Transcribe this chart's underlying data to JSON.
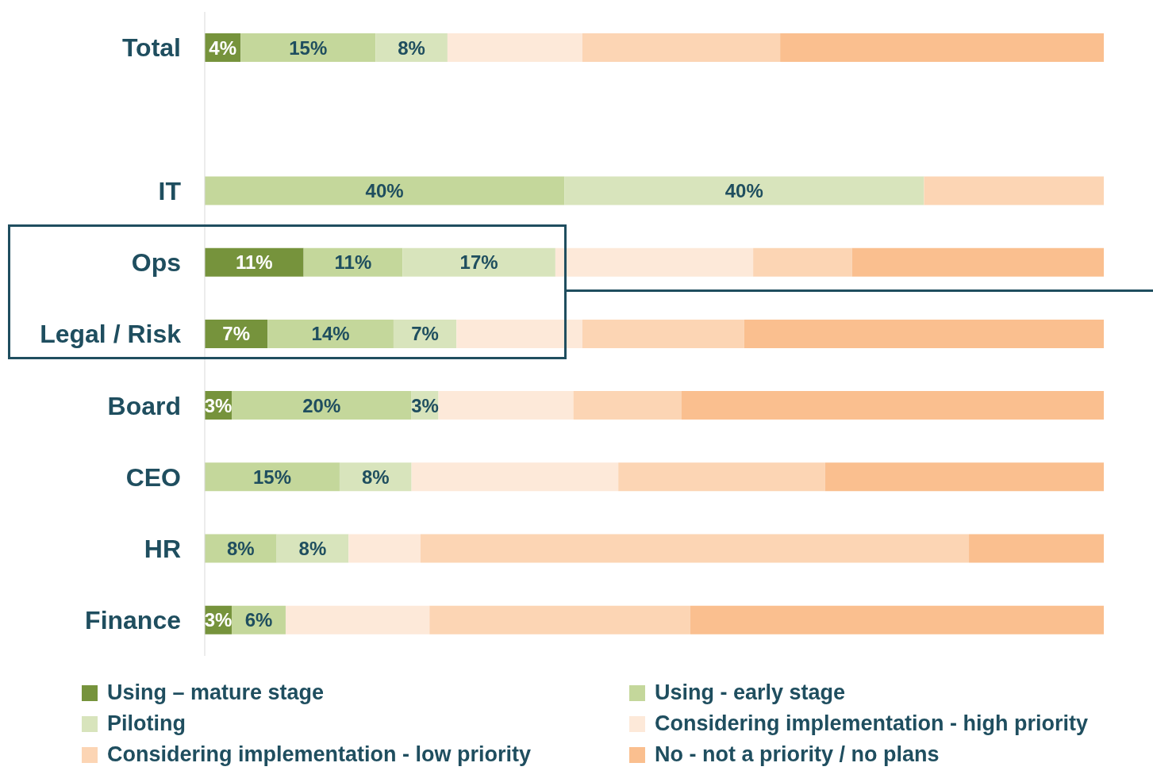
{
  "chart_data": {
    "type": "bar",
    "orientation": "horizontal",
    "stacked": true,
    "categories": [
      "Total",
      null,
      "IT",
      "Ops",
      "Legal / Risk",
      "Board",
      "CEO",
      "HR",
      "Finance"
    ],
    "series": [
      {
        "name": "Using – mature stage",
        "color": "#76933c",
        "values": [
          4,
          null,
          0,
          11,
          7,
          3,
          0,
          0,
          3
        ],
        "value_labels": [
          "4%",
          null,
          null,
          "11%",
          "7%",
          "3%",
          null,
          null,
          "3%"
        ]
      },
      {
        "name": "Using - early stage",
        "color": "#c4d79b",
        "values": [
          15,
          null,
          40,
          11,
          14,
          20,
          15,
          8,
          6
        ],
        "value_labels": [
          "15%",
          null,
          "40%",
          "11%",
          "14%",
          "20%",
          "15%",
          "8%",
          "6%"
        ]
      },
      {
        "name": "Piloting",
        "color": "#d8e4bc",
        "values": [
          8,
          null,
          40,
          17,
          7,
          3,
          8,
          8,
          0
        ],
        "value_labels": [
          "8%",
          null,
          "40%",
          "17%",
          "7%",
          "3%",
          "8%",
          "8%",
          null
        ]
      },
      {
        "name": "Considering implementation - high priority",
        "color": "#fde9d9",
        "values": [
          15,
          null,
          0,
          22,
          14,
          15,
          23,
          8,
          16
        ],
        "value_labels": [
          null,
          null,
          null,
          null,
          null,
          null,
          null,
          null,
          null
        ]
      },
      {
        "name": "Considering implementation - low priority",
        "color": "#fcd5b4",
        "values": [
          22,
          null,
          20,
          11,
          18,
          12,
          23,
          61,
          29
        ],
        "value_labels": [
          null,
          null,
          null,
          null,
          null,
          null,
          null,
          null,
          null
        ]
      },
      {
        "name": "No - not a priority / no plans",
        "color": "#fabf8f",
        "values": [
          36,
          null,
          0,
          28,
          40,
          47,
          31,
          15,
          46
        ],
        "value_labels": [
          null,
          null,
          null,
          null,
          null,
          null,
          null,
          null,
          null
        ]
      }
    ],
    "xlim": [
      0,
      100
    ],
    "tick_labels": "y",
    "legend": "bottom"
  }
}
